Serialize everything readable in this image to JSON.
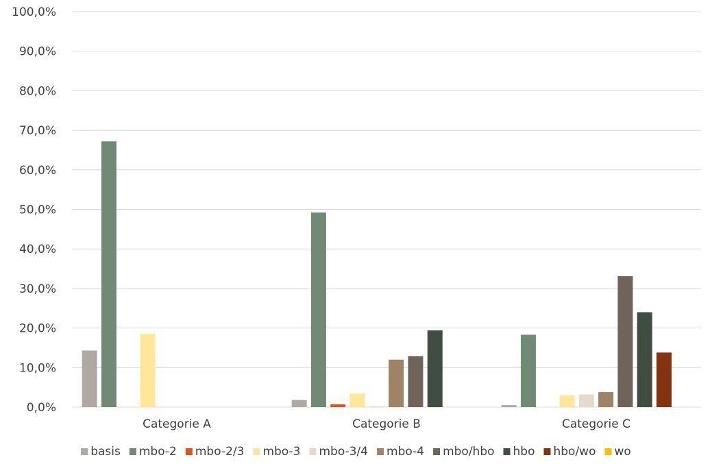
{
  "chart_data": {
    "type": "bar",
    "categories": [
      "Categorie A",
      "Categorie B",
      "Categorie C"
    ],
    "ylim": [
      0,
      100
    ],
    "yticks": [
      "0,0%",
      "10,0%",
      "20,0%",
      "30,0%",
      "40,0%",
      "50,0%",
      "60,0%",
      "70,0%",
      "80,0%",
      "90,0%",
      "100,0%"
    ],
    "grid": true,
    "legend_position": "bottom",
    "series": [
      {
        "name": "basis",
        "color": "#b0a8a2",
        "values": [
          14.3,
          1.8,
          0.5
        ]
      },
      {
        "name": "mbo-2",
        "color": "#718a76",
        "values": [
          67.2,
          49.2,
          18.3
        ]
      },
      {
        "name": "mbo-2/3",
        "color": "#e0521e",
        "values": [
          0,
          0.7,
          0
        ]
      },
      {
        "name": "mbo-3",
        "color": "#ffe699",
        "values": [
          18.5,
          3.4,
          3.0
        ]
      },
      {
        "name": "mbo-3/4",
        "color": "#e6dacd",
        "values": [
          0,
          0.2,
          3.2
        ]
      },
      {
        "name": "mbo-4",
        "color": "#9e8366",
        "values": [
          0,
          12.0,
          3.8
        ]
      },
      {
        "name": "mbo/hbo",
        "color": "#6f645a",
        "values": [
          0,
          12.9,
          33.1
        ]
      },
      {
        "name": "hbo",
        "color": "#414c43",
        "values": [
          0,
          19.4,
          24.0
        ]
      },
      {
        "name": "hbo/wo",
        "color": "#843310",
        "values": [
          0,
          0,
          13.8
        ]
      },
      {
        "name": "wo",
        "color": "#ffc000",
        "values": [
          0,
          0,
          0
        ]
      }
    ]
  }
}
